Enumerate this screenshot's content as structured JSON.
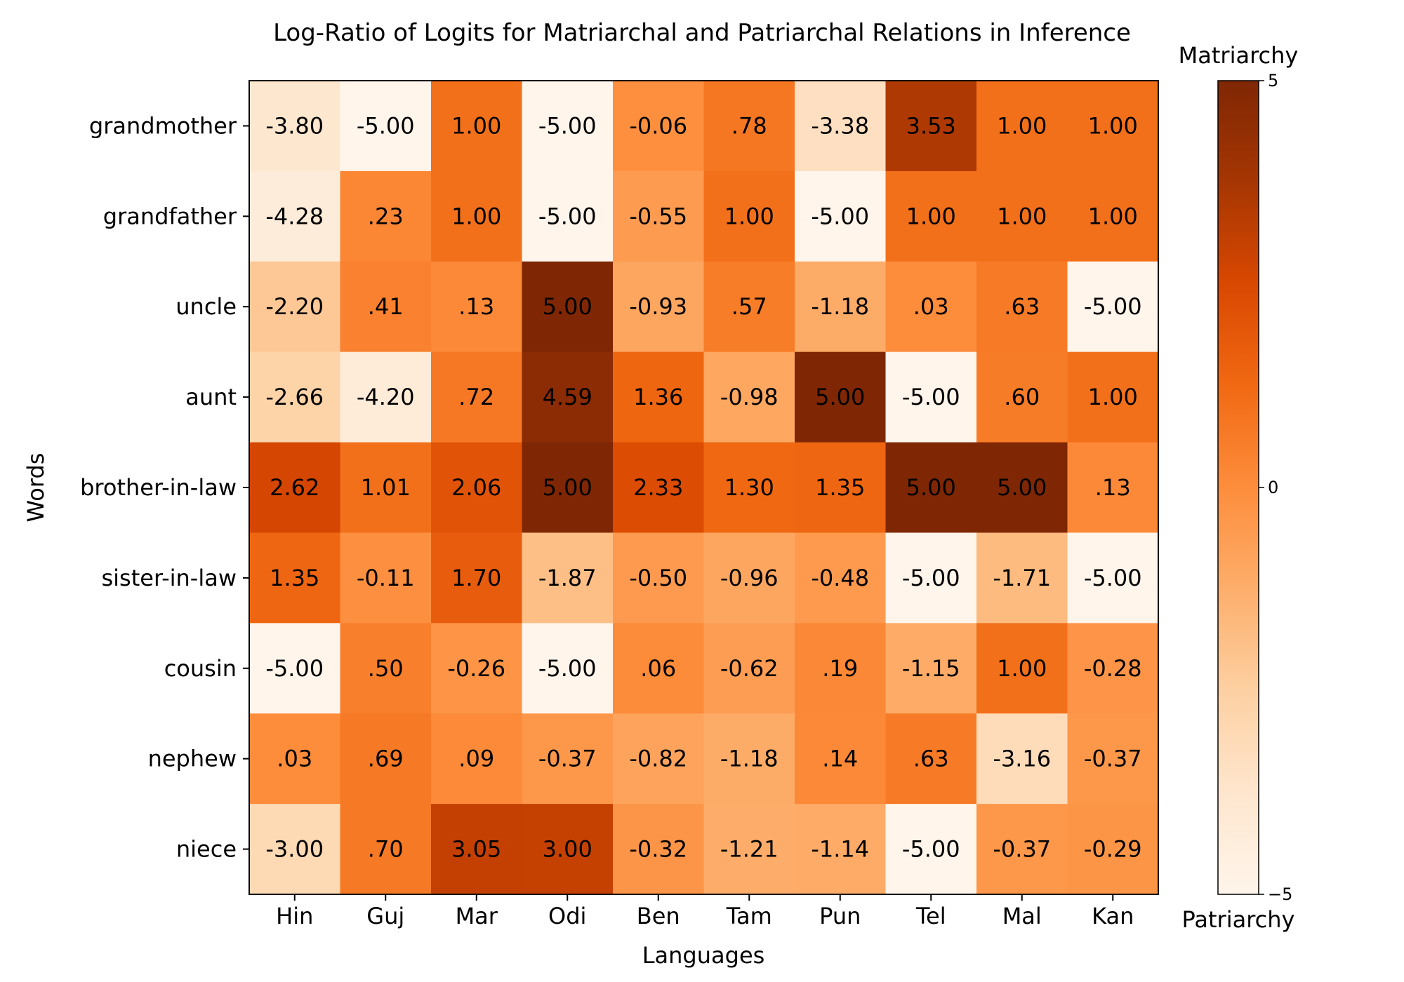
{
  "chart_data": {
    "type": "heatmap",
    "title": "Log-Ratio of Logits for Matriarchal and Patriarchal Relations in Inference",
    "xlabel": "Languages",
    "ylabel": "Words",
    "x": [
      "Hin",
      "Guj",
      "Mar",
      "Odi",
      "Ben",
      "Tam",
      "Pun",
      "Tel",
      "Mal",
      "Kan"
    ],
    "y": [
      "grandmother",
      "grandfather",
      "uncle",
      "aunt",
      "brother-in-law",
      "sister-in-law",
      "cousin",
      "nephew",
      "niece"
    ],
    "values": [
      [
        -3.8,
        -5.0,
        1.0,
        -5.0,
        -0.06,
        0.78,
        -3.38,
        3.53,
        1.0,
        1.0
      ],
      [
        -4.28,
        0.23,
        1.0,
        -5.0,
        -0.55,
        1.0,
        -5.0,
        1.0,
        1.0,
        1.0
      ],
      [
        -2.2,
        0.41,
        0.13,
        5.0,
        -0.93,
        0.57,
        -1.18,
        0.03,
        0.63,
        -5.0
      ],
      [
        -2.66,
        -4.2,
        0.72,
        4.59,
        1.36,
        -0.98,
        5.0,
        -5.0,
        0.6,
        1.0
      ],
      [
        2.62,
        1.01,
        2.06,
        5.0,
        2.33,
        1.3,
        1.35,
        5.0,
        5.0,
        0.13
      ],
      [
        1.35,
        -0.11,
        1.7,
        -1.87,
        -0.5,
        -0.96,
        -0.48,
        -5.0,
        -1.71,
        -5.0
      ],
      [
        -5.0,
        0.5,
        -0.26,
        -5.0,
        0.06,
        -0.62,
        0.19,
        -1.15,
        1.0,
        -0.28
      ],
      [
        0.03,
        0.69,
        0.09,
        -0.37,
        -0.82,
        -1.18,
        0.14,
        0.63,
        -3.16,
        -0.37
      ],
      [
        -3.0,
        0.7,
        3.05,
        3.0,
        -0.32,
        -1.21,
        -1.14,
        -5.0,
        -0.37,
        -0.29
      ]
    ],
    "cell_labels": [
      [
        "-3.80",
        "-5.00",
        "1.00",
        "-5.00",
        "-0.06",
        ".78",
        "-3.38",
        "3.53",
        "1.00",
        "1.00"
      ],
      [
        "-4.28",
        ".23",
        "1.00",
        "-5.00",
        "-0.55",
        "1.00",
        "-5.00",
        "1.00",
        "1.00",
        "1.00"
      ],
      [
        "-2.20",
        ".41",
        ".13",
        "5.00",
        "-0.93",
        ".57",
        "-1.18",
        ".03",
        ".63",
        "-5.00"
      ],
      [
        "-2.66",
        "-4.20",
        ".72",
        "4.59",
        "1.36",
        "-0.98",
        "5.00",
        "-5.00",
        ".60",
        "1.00"
      ],
      [
        "2.62",
        "1.01",
        "2.06",
        "5.00",
        "2.33",
        "1.30",
        "1.35",
        "5.00",
        "5.00",
        ".13"
      ],
      [
        "1.35",
        "-0.11",
        "1.70",
        "-1.87",
        "-0.50",
        "-0.96",
        "-0.48",
        "-5.00",
        "-1.71",
        "-5.00"
      ],
      [
        "-5.00",
        ".50",
        "-0.26",
        "-5.00",
        ".06",
        "-0.62",
        ".19",
        "-1.15",
        "1.00",
        "-0.28"
      ],
      [
        ".03",
        ".69",
        ".09",
        "-0.37",
        "-0.82",
        "-1.18",
        ".14",
        ".63",
        "-3.16",
        "-0.37"
      ],
      [
        "-3.00",
        ".70",
        "3.05",
        "3.00",
        "-0.32",
        "-1.21",
        "-1.14",
        "-5.00",
        "-0.37",
        "-0.29"
      ]
    ],
    "colormap": "Oranges",
    "vmin": -5,
    "vmax": 5,
    "colorbar": {
      "top_label": "Matriarchy",
      "bottom_label": "Patriarchy",
      "ticks": [
        5,
        0,
        -5
      ],
      "tick_labels": [
        "5",
        "0",
        "−5"
      ]
    },
    "grid": false
  }
}
